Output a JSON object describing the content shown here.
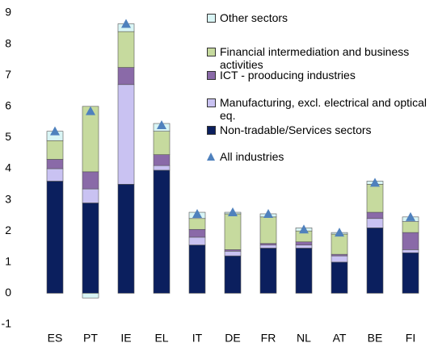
{
  "chart_data": {
    "type": "stacked_bar",
    "categories": [
      "ES",
      "PT",
      "IE",
      "EL",
      "IT",
      "DE",
      "FR",
      "NL",
      "AT",
      "BE",
      "FI"
    ],
    "series": [
      {
        "name": "Non-tradable/Services sectors",
        "color": "#0b1f5e",
        "values": [
          3.6,
          2.9,
          3.5,
          3.95,
          1.55,
          1.2,
          1.45,
          1.45,
          1.0,
          2.1,
          1.3
        ]
      },
      {
        "name": "Manufacturing, excl. electrical and optical eq.",
        "color": "#c9c2f2",
        "values": [
          0.4,
          0.45,
          3.2,
          0.15,
          0.25,
          0.15,
          0.1,
          0.1,
          0.2,
          0.3,
          0.1
        ]
      },
      {
        "name": "ICT - prooducing industries",
        "color": "#8a6aa8",
        "values": [
          0.3,
          0.55,
          0.55,
          0.35,
          0.25,
          0.05,
          0.05,
          0.1,
          0.05,
          0.2,
          0.55
        ]
      },
      {
        "name": "Financial intermediation and business activities",
        "color": "#c6da9e",
        "values": [
          0.6,
          2.1,
          1.15,
          0.75,
          0.35,
          1.15,
          0.85,
          0.35,
          0.65,
          0.9,
          0.35
        ]
      },
      {
        "name": "Other sectors",
        "color": "#d9f5f5",
        "values": [
          0.3,
          -0.15,
          0.25,
          0.25,
          0.2,
          0.05,
          0.1,
          0.1,
          0.05,
          0.1,
          0.15
        ]
      }
    ],
    "all_industries": {
      "name": "All industries",
      "color": "#4f81bd",
      "values": [
        5.2,
        5.85,
        8.65,
        5.4,
        2.55,
        2.6,
        2.55,
        2.05,
        1.95,
        3.55,
        2.45
      ]
    },
    "ylim": [
      -1,
      9
    ],
    "yticks": [
      -1,
      0,
      1,
      2,
      3,
      4,
      5,
      6,
      7,
      8,
      9
    ],
    "grid": false,
    "legend": "top-right"
  }
}
